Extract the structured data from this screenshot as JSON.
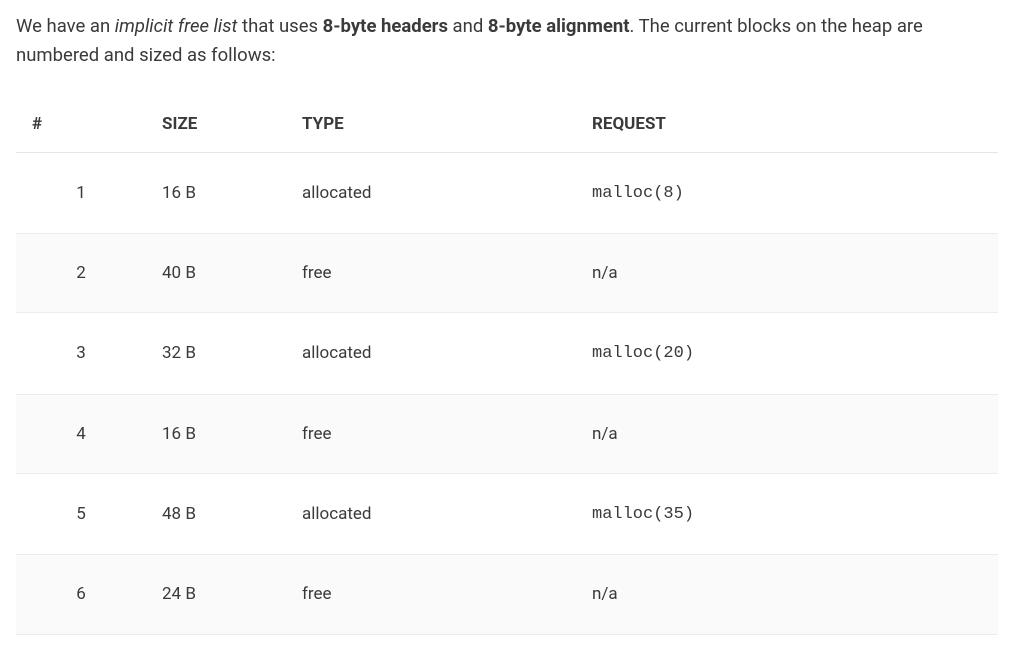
{
  "intro": {
    "p1a": "We have an ",
    "italic": "implicit free list",
    "p1b": " that uses ",
    "bold1": "8-byte headers",
    "p1c": " and ",
    "bold2": "8-byte alignment",
    "p1d": ". The current blocks on the heap are numbered and sized as follows:"
  },
  "table": {
    "headers": {
      "num": "#",
      "size": "SIZE",
      "type": "TYPE",
      "request": "REQUEST"
    },
    "rows": [
      {
        "num": "1",
        "size": "16 B",
        "type": "allocated",
        "request": "malloc(8)",
        "mono": true
      },
      {
        "num": "2",
        "size": "40 B",
        "type": "free",
        "request": "n/a",
        "mono": false
      },
      {
        "num": "3",
        "size": "32 B",
        "type": "allocated",
        "request": "malloc(20)",
        "mono": true
      },
      {
        "num": "4",
        "size": "16 B",
        "type": "free",
        "request": "n/a",
        "mono": false
      },
      {
        "num": "5",
        "size": "48 B",
        "type": "allocated",
        "request": "malloc(35)",
        "mono": true
      },
      {
        "num": "6",
        "size": "24 B",
        "type": "free",
        "request": "n/a",
        "mono": false
      }
    ]
  },
  "styling": {
    "background_color": "#ffffff",
    "text_color": "#3a3a3a",
    "row_alt_color": "#fafafa",
    "border_color": "#e5e5e5",
    "body_fontsize": 18,
    "header_fontsize": 17,
    "cell_fontsize": 17,
    "mono_font": "Courier New"
  }
}
